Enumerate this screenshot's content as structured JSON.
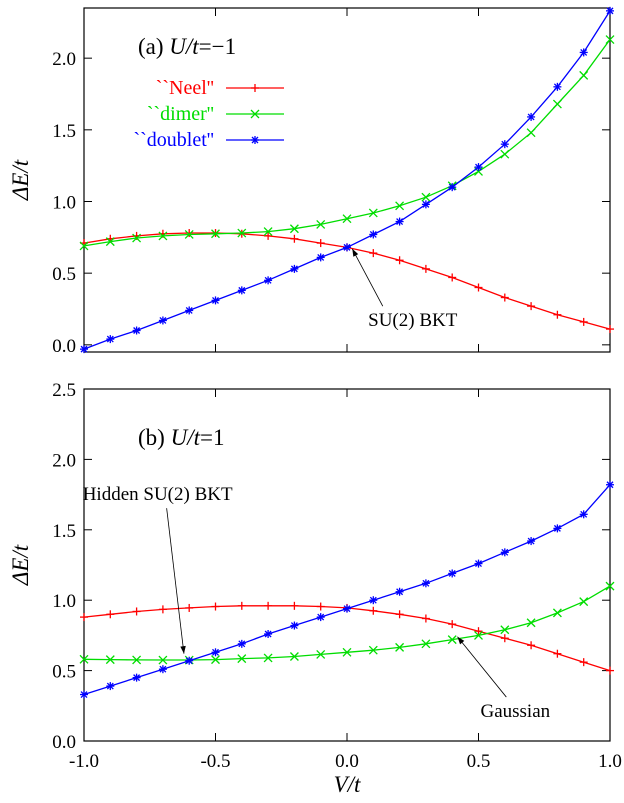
{
  "chart_data": [
    {
      "type": "line",
      "panel": "top",
      "title_prefix": "(a) ",
      "title_var": "U/t",
      "title_value": "=−1",
      "xlabel": "",
      "ylabel": "ΔE/t",
      "xlim": [
        -1.0,
        1.0
      ],
      "ylim": [
        -0.05,
        2.35
      ],
      "yticks": [
        "0.0",
        "0.5",
        "1.0",
        "1.5",
        "2.0"
      ],
      "xticks": [],
      "legend_placement": "top-left",
      "x": [
        -1.0,
        -0.9,
        -0.8,
        -0.7,
        -0.6,
        -0.5,
        -0.4,
        -0.3,
        -0.2,
        -0.1,
        0.0,
        0.1,
        0.2,
        0.3,
        0.4,
        0.5,
        0.6,
        0.7,
        0.8,
        0.9,
        1.0
      ],
      "series": [
        {
          "name": "``Neel''",
          "color": "#ff0000",
          "marker": "plus",
          "values": [
            0.71,
            0.74,
            0.76,
            0.775,
            0.78,
            0.78,
            0.775,
            0.76,
            0.74,
            0.71,
            0.68,
            0.64,
            0.59,
            0.53,
            0.47,
            0.4,
            0.33,
            0.27,
            0.21,
            0.16,
            0.11
          ]
        },
        {
          "name": "``dimer''",
          "color": "#00dd00",
          "marker": "x",
          "values": [
            0.69,
            0.72,
            0.745,
            0.76,
            0.77,
            0.775,
            0.78,
            0.79,
            0.81,
            0.84,
            0.88,
            0.92,
            0.97,
            1.03,
            1.11,
            1.21,
            1.33,
            1.48,
            1.68,
            1.88,
            2.13
          ]
        },
        {
          "name": "``doublet''",
          "color": "#0000ff",
          "marker": "star",
          "values": [
            -0.03,
            0.04,
            0.1,
            0.17,
            0.24,
            0.31,
            0.38,
            0.45,
            0.53,
            0.61,
            0.68,
            0.77,
            0.86,
            0.98,
            1.1,
            1.24,
            1.4,
            1.59,
            1.8,
            2.04,
            2.33
          ]
        }
      ],
      "annotations": [
        {
          "text": "SU(2) BKT",
          "x": 0.25,
          "y": 0.13,
          "arrow_to": [
            0.02,
            0.67
          ]
        }
      ]
    },
    {
      "type": "line",
      "panel": "bottom",
      "title_prefix": "(b) ",
      "title_var": "U/t",
      "title_value": "=1",
      "xlabel": "V/t",
      "ylabel": "ΔE/t",
      "xlim": [
        -1.0,
        1.0
      ],
      "ylim": [
        0.0,
        2.5
      ],
      "yticks": [
        "0.0",
        "0.5",
        "1.0",
        "1.5",
        "2.0",
        "2.5"
      ],
      "xticks": [
        "-1.0",
        "-0.5",
        "0.0",
        "0.5",
        "1.0"
      ],
      "x": [
        -1.0,
        -0.9,
        -0.8,
        -0.7,
        -0.6,
        -0.5,
        -0.4,
        -0.3,
        -0.2,
        -0.1,
        0.0,
        0.1,
        0.2,
        0.3,
        0.4,
        0.5,
        0.6,
        0.7,
        0.8,
        0.9,
        1.0
      ],
      "series": [
        {
          "name": "",
          "color": "#ff0000",
          "marker": "plus",
          "values": [
            0.88,
            0.9,
            0.92,
            0.935,
            0.945,
            0.955,
            0.96,
            0.96,
            0.96,
            0.955,
            0.945,
            0.925,
            0.9,
            0.87,
            0.83,
            0.78,
            0.73,
            0.68,
            0.62,
            0.56,
            0.5
          ]
        },
        {
          "name": "",
          "color": "#00dd00",
          "marker": "x",
          "values": [
            0.58,
            0.578,
            0.576,
            0.575,
            0.575,
            0.578,
            0.585,
            0.59,
            0.6,
            0.615,
            0.63,
            0.645,
            0.665,
            0.69,
            0.72,
            0.75,
            0.79,
            0.84,
            0.91,
            0.99,
            1.1
          ]
        },
        {
          "name": "",
          "color": "#0000ff",
          "marker": "star",
          "values": [
            0.33,
            0.39,
            0.45,
            0.51,
            0.57,
            0.63,
            0.69,
            0.76,
            0.82,
            0.88,
            0.94,
            1.0,
            1.06,
            1.12,
            1.19,
            1.26,
            1.34,
            1.42,
            1.51,
            1.61,
            1.82
          ]
        }
      ],
      "annotations": [
        {
          "text": "Hidden SU(2) BKT",
          "x": -0.72,
          "y": 1.71,
          "arrow_to": [
            -0.62,
            0.62
          ]
        },
        {
          "text": "Gaussian",
          "x": 0.64,
          "y": 0.17,
          "arrow_to": [
            0.42,
            0.74
          ]
        }
      ]
    }
  ]
}
